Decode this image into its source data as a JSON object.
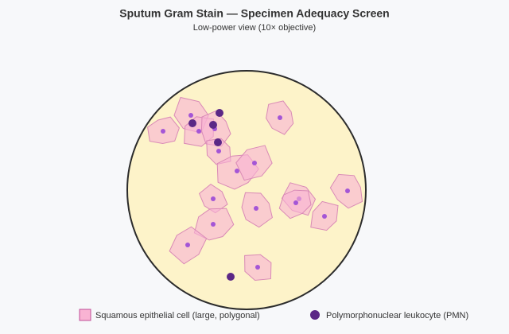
{
  "header": {
    "title": "Sputum Gram Stain — Specimen Adequacy Screen",
    "subtitle": "Low-power view (10× objective)"
  },
  "legend": [
    {
      "label": "Squamous epithelial cell (large, polygonal)"
    },
    {
      "label": "Polymorphonuclear leukocyte (PMN)"
    }
  ]
}
